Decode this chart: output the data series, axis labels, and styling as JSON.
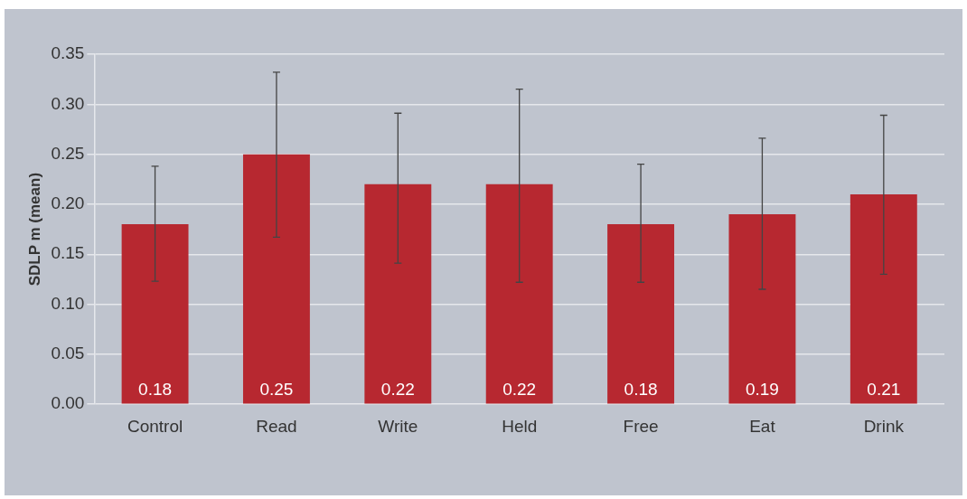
{
  "chart_data": {
    "type": "bar",
    "ylabel": "SDLP m (mean)",
    "categories": [
      "Control",
      "Read",
      "Write",
      "Held",
      "Free",
      "Eat",
      "Drink"
    ],
    "values": [
      0.18,
      0.25,
      0.22,
      0.22,
      0.18,
      0.19,
      0.21
    ],
    "errors": [
      [
        0.123,
        0.238
      ],
      [
        0.167,
        0.332
      ],
      [
        0.141,
        0.291
      ],
      [
        0.122,
        0.315
      ],
      [
        0.122,
        0.24
      ],
      [
        0.115,
        0.266
      ],
      [
        0.13,
        0.289
      ]
    ],
    "color": "#b72830",
    "data_labels": true,
    "ylim": [
      0,
      0.35
    ],
    "yticks": [
      {
        "value": 0,
        "label": "0.00"
      },
      {
        "value": 0.05,
        "label": "0.05"
      },
      {
        "value": 0.1,
        "label": "0.10"
      },
      {
        "value": 0.15,
        "label": "0.15"
      },
      {
        "value": 0.2,
        "label": "0.20"
      },
      {
        "value": 0.25,
        "label": "0.25"
      },
      {
        "value": 0.3,
        "label": "0.30"
      },
      {
        "value": 0.35,
        "label": "0.35"
      }
    ],
    "grid": "y",
    "legend": false
  }
}
